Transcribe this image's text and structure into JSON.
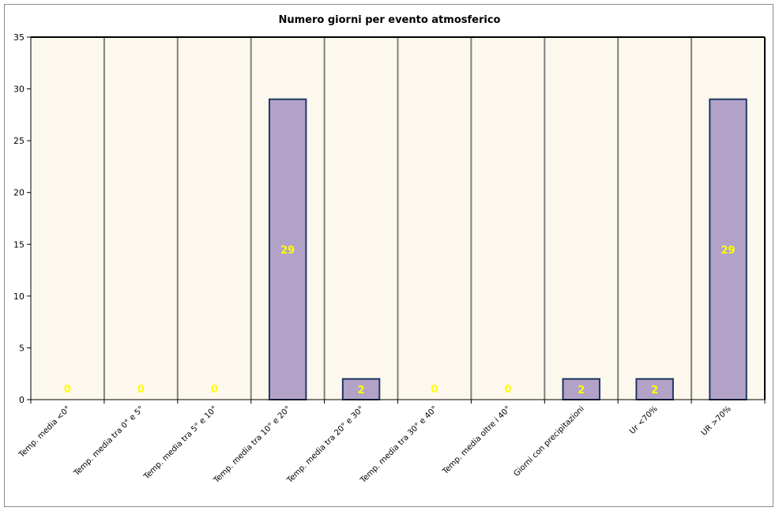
{
  "chart_data": {
    "type": "bar",
    "title": "Numero giorni per evento atmosferico",
    "categories": [
      "Temp. media <0°",
      "Temp. media tra 0° e 5°",
      "Temp. media tra 5° e 10°",
      "Temp. media tra 10° e 20°",
      "Temp. media tra 20° e 30°",
      "Temp. media tra 30° e 40°",
      "Temp. media oltre i 40°",
      "Giorni con precipitazioni",
      "Ur <70%",
      "UR >70%"
    ],
    "values": [
      0,
      0,
      0,
      29,
      2,
      0,
      0,
      2,
      2,
      29
    ],
    "data_labels": [
      "0",
      "0",
      "0",
      "29",
      "2",
      "0",
      "0",
      "2",
      "2",
      "29"
    ],
    "ylim": [
      0,
      35
    ],
    "yticks": [
      "0",
      "5",
      "10",
      "15",
      "20",
      "25",
      "30",
      "35"
    ],
    "grid": "vertical",
    "legend": "none",
    "colors": {
      "bar_fill": "#b3a2c7",
      "bar_stroke": "#1f3864",
      "plot_background": "#fdf8ee",
      "separator": "#808080",
      "data_label": "#ffff00"
    }
  }
}
